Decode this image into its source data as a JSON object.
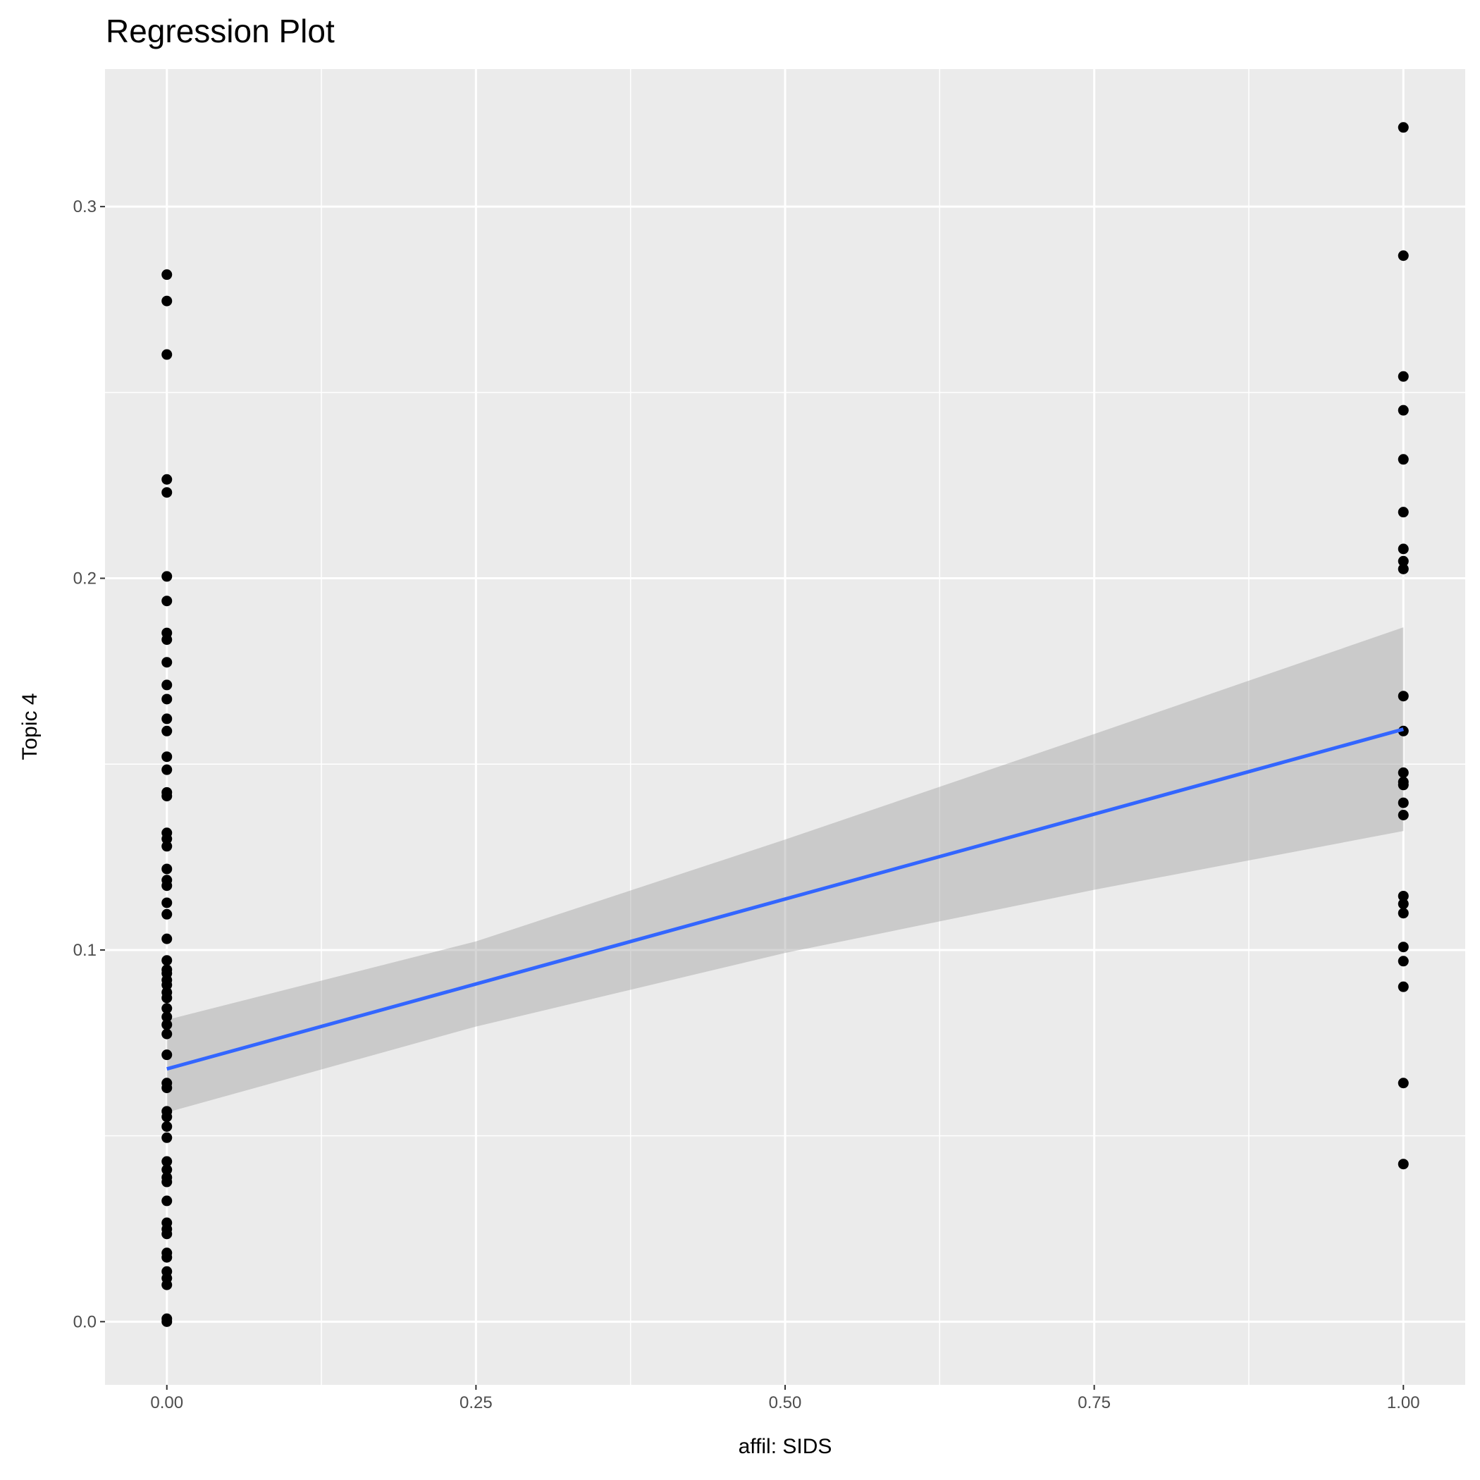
{
  "chart_data": {
    "type": "scatter",
    "title": "Regression Plot",
    "xlabel": "affil: SIDS",
    "ylabel": "Topic 4",
    "xlim": [
      -0.05,
      1.05
    ],
    "ylim": [
      -0.017,
      0.337
    ],
    "xticks": [
      "0.00",
      "0.25",
      "0.50",
      "0.75",
      "1.00"
    ],
    "xtick_values": [
      0,
      0.25,
      0.5,
      0.75,
      1
    ],
    "yticks": [
      "0.0",
      "0.1",
      "0.2",
      "0.3"
    ],
    "ytick_values": [
      0,
      0.1,
      0.2,
      0.3
    ],
    "grid": true,
    "colors": {
      "panel": "#ebebeb",
      "grid": "#ffffff",
      "points": "#000000",
      "line": "#3366ff",
      "band": "#999999"
    },
    "points": [
      {
        "x": 0,
        "y": [
          0.2817,
          0.2746,
          0.2602,
          0.2266,
          0.2231,
          0.2005,
          0.1939,
          0.1853,
          0.1835,
          0.1774,
          0.1713,
          0.1675,
          0.1622,
          0.1589,
          0.152,
          0.1485,
          0.1424,
          0.1414,
          0.1315,
          0.1299,
          0.1279,
          0.1218,
          0.1188,
          0.1173,
          0.1127,
          0.1096,
          0.103,
          0.0972,
          0.0947,
          0.0937,
          0.0919,
          0.0906,
          0.0886,
          0.0871,
          0.0843,
          0.082,
          0.0799,
          0.0774,
          0.0718,
          0.0642,
          0.0629,
          0.0566,
          0.0551,
          0.0525,
          0.0495,
          0.0431,
          0.0409,
          0.0388,
          0.0376,
          0.0325,
          0.0266,
          0.0249,
          0.0236,
          0.0185,
          0.0173,
          0.0135,
          0.0117,
          0.0099,
          0.0008,
          0.0
        ]
      },
      {
        "x": 1,
        "y": [
          0.3213,
          0.2868,
          0.2543,
          0.2452,
          0.232,
          0.2178,
          0.2079,
          0.2046,
          0.2025,
          0.1683,
          0.1589,
          0.1477,
          0.1452,
          0.1444,
          0.1396,
          0.1363,
          0.1145,
          0.1124,
          0.1099,
          0.1008,
          0.097,
          0.0901,
          0.0642,
          0.0424
        ]
      }
    ],
    "regression": {
      "x": [
        0,
        1
      ],
      "y": [
        0.068,
        0.1594
      ]
    },
    "confidence_band": {
      "x": [
        0,
        0.25,
        0.5,
        0.75,
        1
      ],
      "lower": [
        0.0563,
        0.0794,
        0.0992,
        0.1162,
        0.132
      ],
      "upper": [
        0.0812,
        0.1023,
        0.1297,
        0.1581,
        0.1868
      ]
    }
  }
}
